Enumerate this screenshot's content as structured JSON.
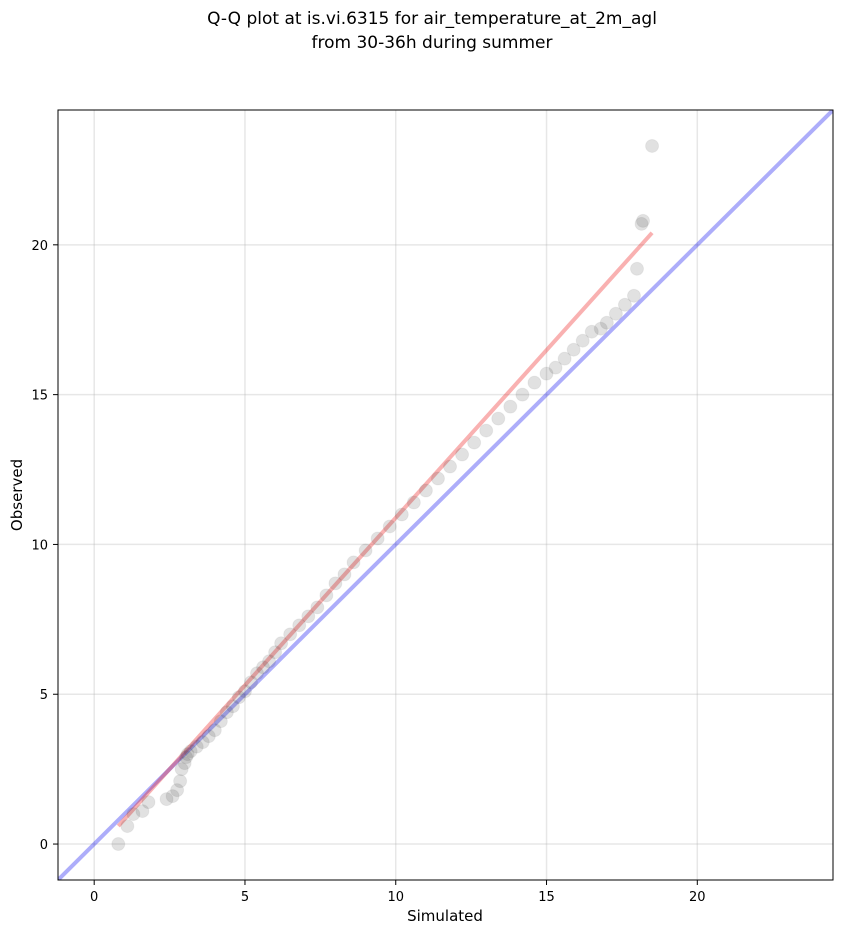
{
  "chart_data": {
    "type": "scatter",
    "title_line1": "Q-Q plot at is.vi.6315 for air_temperature_at_2m_agl",
    "title_line2": "from 30-36h during summer",
    "xlabel": "Simulated",
    "ylabel": "Observed",
    "xlim": [
      -1.2,
      24.5
    ],
    "ylim": [
      -1.2,
      24.5
    ],
    "xticks": [
      0,
      5,
      10,
      15,
      20
    ],
    "yticks": [
      0,
      5,
      10,
      15,
      20
    ],
    "grid": true,
    "identity_line": {
      "x": [
        -1.2,
        24.5
      ],
      "y": [
        -1.2,
        24.5
      ],
      "color": "#0000ee"
    },
    "fit_line": {
      "x": [
        0.8,
        18.5
      ],
      "y": [
        0.6,
        20.4
      ],
      "color": "#ee1111"
    },
    "quantiles": {
      "simulated": [
        0.8,
        1.1,
        1.3,
        1.6,
        1.8,
        2.4,
        2.6,
        2.75,
        2.85,
        2.9,
        3.0,
        3.05,
        3.1,
        3.2,
        3.4,
        3.6,
        3.8,
        4.0,
        4.2,
        4.4,
        4.6,
        4.8,
        5.0,
        5.2,
        5.4,
        5.6,
        5.8,
        6.0,
        6.2,
        6.5,
        6.8,
        7.1,
        7.4,
        7.7,
        8.0,
        8.3,
        8.6,
        9.0,
        9.4,
        9.8,
        10.2,
        10.6,
        11.0,
        11.4,
        11.8,
        12.2,
        12.6,
        13.0,
        13.4,
        13.8,
        14.2,
        14.6,
        15.0,
        15.3,
        15.6,
        15.9,
        16.2,
        16.5,
        16.8,
        17.0,
        17.3,
        17.6,
        17.9,
        18.0,
        18.15,
        18.2,
        18.5
      ],
      "observed": [
        0.0,
        0.6,
        1.0,
        1.1,
        1.4,
        1.5,
        1.6,
        1.8,
        2.1,
        2.5,
        2.7,
        2.9,
        3.0,
        3.1,
        3.25,
        3.4,
        3.6,
        3.8,
        4.1,
        4.4,
        4.6,
        4.9,
        5.1,
        5.4,
        5.7,
        5.9,
        6.1,
        6.4,
        6.7,
        7.0,
        7.3,
        7.6,
        7.9,
        8.3,
        8.7,
        9.0,
        9.4,
        9.8,
        10.2,
        10.6,
        11.0,
        11.4,
        11.8,
        12.2,
        12.6,
        13.0,
        13.4,
        13.8,
        14.2,
        14.6,
        15.0,
        15.4,
        15.7,
        15.9,
        16.2,
        16.5,
        16.8,
        17.1,
        17.2,
        17.4,
        17.7,
        18.0,
        18.3,
        19.2,
        20.7,
        20.8,
        23.3
      ]
    }
  }
}
